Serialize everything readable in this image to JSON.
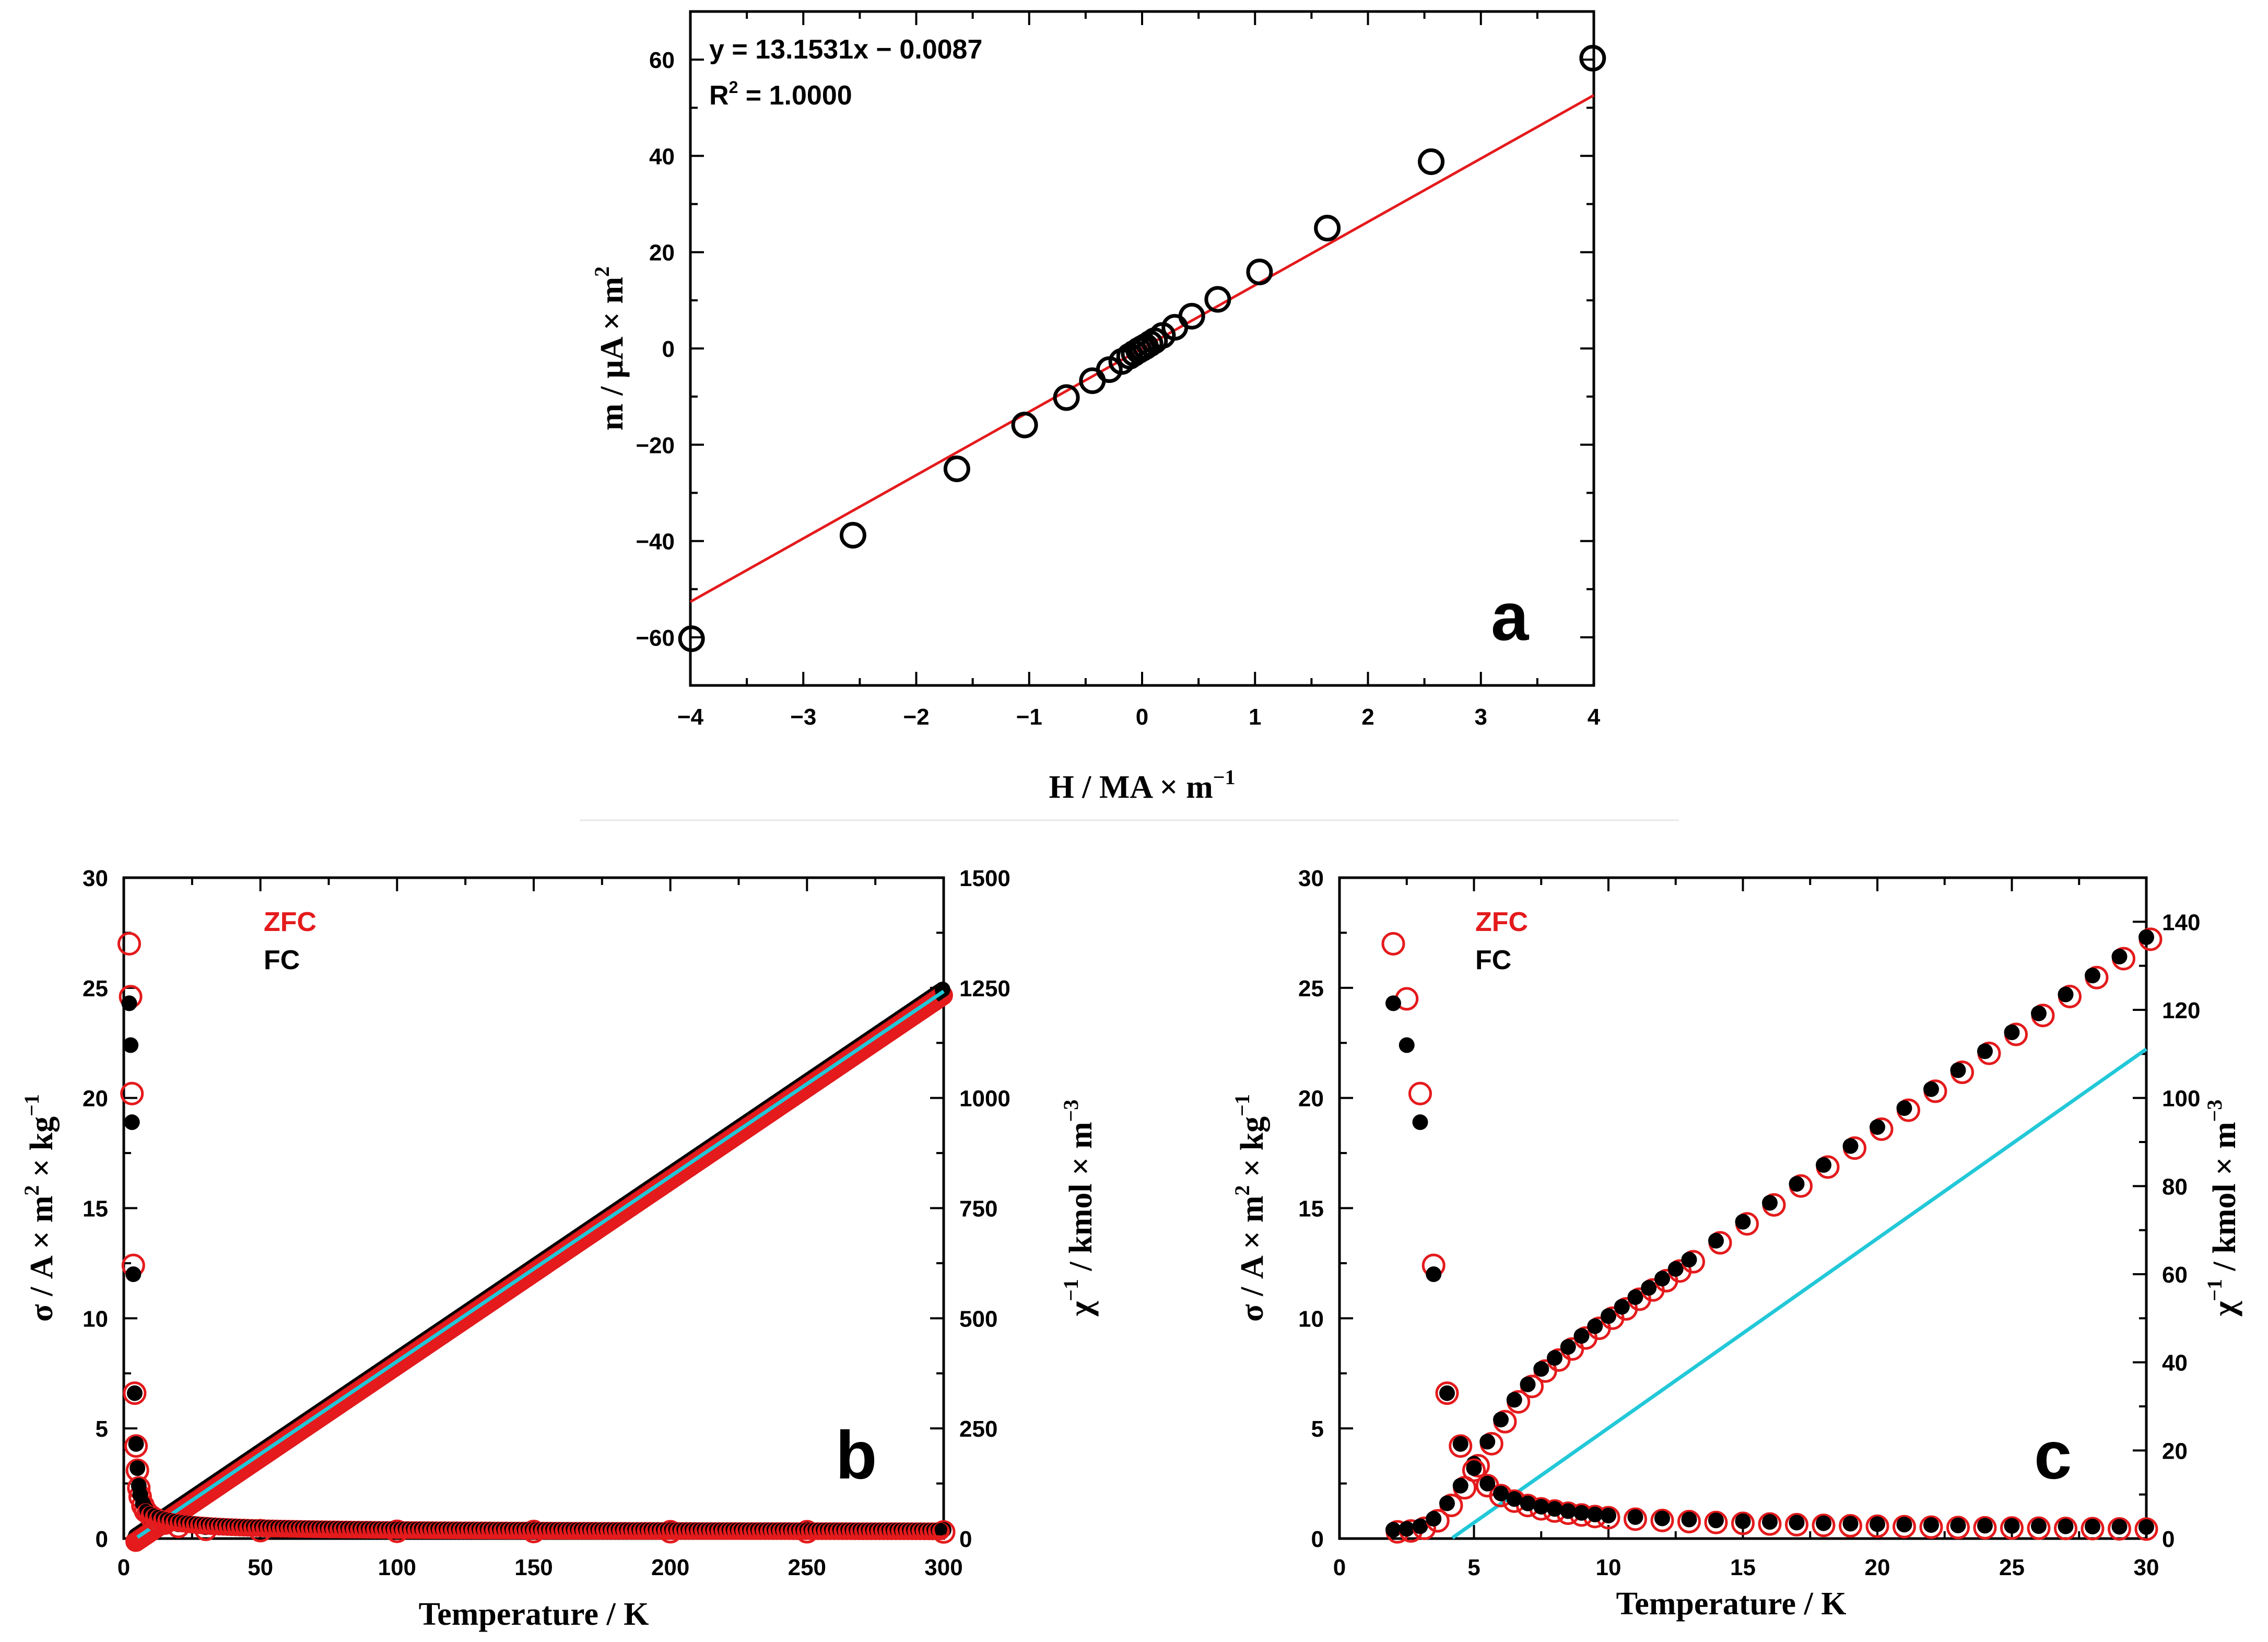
{
  "chart_data": [
    {
      "id": "a",
      "type": "scatter",
      "panel_label": "a",
      "xlabel": "H / MA × m",
      "xlabel_sup": "−1",
      "ylabel": "m / μA × m",
      "ylabel_sup": "2",
      "xlim": [
        -4,
        4
      ],
      "ylim": [
        -70,
        70
      ],
      "xticks": [
        -4,
        -3,
        -2,
        -1,
        0,
        1,
        2,
        3,
        4
      ],
      "xtick_labels": [
        "−4",
        "−3",
        "−2",
        "−1",
        "0",
        "1",
        "2",
        "3",
        "4"
      ],
      "yticks": [
        -60,
        -40,
        -20,
        0,
        20,
        40,
        60
      ],
      "ytick_labels": [
        "−60",
        "−40",
        "−20",
        "0",
        "20",
        "40",
        "60"
      ],
      "equation": "y = 13.1531x − 0.0087",
      "r2_prefix": "R",
      "r2_sup": "2",
      "r2_value": " = 1.0000",
      "fit": {
        "slope": 13.1531,
        "intercept": -0.0087,
        "color": "#e41a1c"
      },
      "marker_color": "#000000",
      "points": {
        "x": [
          -3.99,
          -2.56,
          -1.64,
          -1.04,
          -0.67,
          -0.44,
          -0.29,
          -0.18,
          -0.11,
          -0.07,
          -0.03,
          0,
          0.03,
          0.07,
          0.11,
          0.18,
          0.29,
          0.44,
          0.67,
          1.04,
          1.64,
          2.56,
          3.99
        ],
        "y": [
          -60.3,
          -38.8,
          -25.0,
          -15.9,
          -10.2,
          -6.7,
          -4.4,
          -2.7,
          -1.6,
          -1.0,
          -0.4,
          0,
          0.4,
          1.0,
          1.6,
          2.7,
          4.4,
          6.7,
          10.2,
          15.9,
          25.0,
          38.8,
          60.3
        ]
      }
    },
    {
      "id": "b",
      "type": "scatter",
      "panel_label": "b",
      "xlabel": "Temperature / K",
      "ylabel_left": "σ / A × m",
      "ylabel_left_sup1": "2",
      "ylabel_left_mid": " × kg",
      "ylabel_left_sup2": "−1",
      "ylabel_right": "χ",
      "ylabel_right_sup1": "−1",
      "ylabel_right_mid": " / kmol × m",
      "ylabel_right_sup2": "−3",
      "xlim": [
        0,
        300
      ],
      "ylim_left": [
        0,
        30
      ],
      "ylim_right": [
        0,
        1500
      ],
      "xticks": [
        0,
        50,
        100,
        150,
        200,
        250,
        300
      ],
      "yticks_left": [
        0,
        5,
        10,
        15,
        20,
        25,
        30
      ],
      "yticks_right": [
        0,
        250,
        500,
        750,
        1000,
        1250,
        1500
      ],
      "legend": [
        {
          "label": "ZFC",
          "color": "#e41a1c"
        },
        {
          "label": "FC",
          "color": "#000000"
        }
      ],
      "series": [
        {
          "name": "ZFC σ",
          "axis": "left",
          "marker": "open",
          "color": "#e41a1c",
          "x": [
            2,
            2.5,
            3,
            3.5,
            4,
            4.5,
            5,
            5.5,
            6,
            7,
            8,
            10,
            12,
            15,
            20,
            30,
            50,
            100,
            150,
            200,
            250,
            300
          ],
          "y": [
            27.0,
            24.6,
            20.2,
            12.4,
            6.6,
            4.2,
            3.1,
            2.3,
            1.9,
            1.5,
            1.25,
            1.0,
            0.85,
            0.7,
            0.55,
            0.42,
            0.36,
            0.33,
            0.32,
            0.31,
            0.31,
            0.3
          ]
        },
        {
          "name": "FC σ",
          "axis": "left",
          "marker": "filled",
          "color": "#000000",
          "x": [
            2,
            2.5,
            3,
            3.5,
            4,
            4.5,
            5,
            5.5,
            6,
            7,
            8,
            10,
            12,
            15,
            20,
            30,
            50,
            100,
            150,
            200,
            250,
            300
          ],
          "y": [
            24.3,
            22.4,
            18.9,
            12.0,
            6.6,
            4.2,
            3.1,
            2.3,
            1.9,
            1.5,
            1.25,
            1.0,
            0.85,
            0.7,
            0.55,
            0.42,
            0.36,
            0.33,
            0.32,
            0.31,
            0.31,
            0.3
          ]
        },
        {
          "name": "χ⁻¹",
          "axis": "right",
          "marker": "dense",
          "color": "#000000",
          "x_range": [
            2,
            300
          ],
          "slope": 4.2,
          "intercept": -18
        }
      ],
      "fit": {
        "axis": "right",
        "color": "#22c8d8",
        "slope": 4.2,
        "intercept": -18,
        "x_range": [
          5,
          300
        ]
      }
    },
    {
      "id": "c",
      "type": "scatter",
      "panel_label": "c",
      "xlabel": "Temperature / K",
      "ylabel_left": "σ / A × m",
      "ylabel_left_sup1": "2",
      "ylabel_left_mid": " × kg",
      "ylabel_left_sup2": "−1",
      "ylabel_right": "χ",
      "ylabel_right_sup1": "−1",
      "ylabel_right_mid": " / kmol × m",
      "ylabel_right_sup2": "−3",
      "xlim": [
        0,
        30
      ],
      "ylim_left": [
        0,
        30
      ],
      "ylim_right": [
        0,
        150
      ],
      "xticks": [
        0,
        5,
        10,
        15,
        20,
        25,
        30
      ],
      "yticks_left": [
        0,
        5,
        10,
        15,
        20,
        25,
        30
      ],
      "yticks_right": [
        0,
        20,
        40,
        60,
        80,
        100,
        120,
        140
      ],
      "legend": [
        {
          "label": "ZFC",
          "color": "#e41a1c"
        },
        {
          "label": "FC",
          "color": "#000000"
        }
      ],
      "series": [
        {
          "name": "ZFC σ",
          "axis": "left",
          "marker": "open",
          "color": "#e41a1c",
          "x": [
            2,
            2.5,
            3,
            3.5,
            4,
            4.5,
            5,
            5.5,
            6,
            6.5,
            7,
            7.5,
            8,
            8.5,
            9,
            9.5,
            10,
            11,
            12,
            13,
            14,
            15,
            16,
            17,
            18,
            19,
            20,
            21,
            22,
            23,
            24,
            25,
            26,
            27,
            28,
            29,
            30
          ],
          "y": [
            27.0,
            24.5,
            20.2,
            12.4,
            6.6,
            4.2,
            3.1,
            2.4,
            1.95,
            1.7,
            1.5,
            1.35,
            1.25,
            1.15,
            1.07,
            1.0,
            0.95,
            0.88,
            0.82,
            0.77,
            0.73,
            0.69,
            0.66,
            0.63,
            0.6,
            0.58,
            0.56,
            0.54,
            0.52,
            0.5,
            0.49,
            0.48,
            0.47,
            0.46,
            0.45,
            0.44,
            0.43
          ]
        },
        {
          "name": "FC σ",
          "axis": "left",
          "marker": "filled",
          "color": "#000000",
          "x": [
            2,
            2.5,
            3,
            3.5,
            4,
            4.5,
            5,
            5.5,
            6,
            6.5,
            7,
            7.5,
            8,
            8.5,
            9,
            9.5,
            10,
            11,
            12,
            13,
            14,
            15,
            16,
            17,
            18,
            19,
            20,
            21,
            22,
            23,
            24,
            25,
            26,
            27,
            28,
            29,
            30
          ],
          "y": [
            24.3,
            22.4,
            18.9,
            12.0,
            6.6,
            4.2,
            3.1,
            2.4,
            1.95,
            1.7,
            1.5,
            1.35,
            1.25,
            1.15,
            1.07,
            1.0,
            0.95,
            0.88,
            0.82,
            0.77,
            0.73,
            0.69,
            0.66,
            0.63,
            0.6,
            0.58,
            0.56,
            0.54,
            0.52,
            0.5,
            0.49,
            0.48,
            0.47,
            0.46,
            0.45,
            0.44,
            0.43
          ]
        },
        {
          "name": "χ⁻¹",
          "axis": "right",
          "marker": "both",
          "color": "#000000",
          "x": [
            2,
            2.5,
            3,
            3.5,
            4,
            4.5,
            5,
            5.5,
            6,
            6.5,
            7,
            7.5,
            8,
            8.5,
            9,
            9.5,
            10,
            10.5,
            11,
            11.5,
            12,
            12.5,
            13,
            14,
            15,
            16,
            17,
            18,
            19,
            20,
            21,
            22,
            23,
            24,
            25,
            26,
            27,
            28,
            29,
            30
          ],
          "y": [
            2,
            2.2,
            2.8,
            4.5,
            8,
            12,
            17,
            22,
            27,
            31.5,
            35,
            38.5,
            41,
            43.5,
            46,
            48.2,
            50.5,
            52.6,
            54.8,
            56.9,
            59,
            61.2,
            63.3,
            67.6,
            71.9,
            76.2,
            80.5,
            84.8,
            89.1,
            93.4,
            97.7,
            102,
            106.3,
            110.6,
            114.9,
            119.2,
            123.5,
            127.8,
            132.1,
            136.5
          ]
        }
      ],
      "fit": {
        "axis": "right",
        "color": "#22c8d8",
        "slope": 4.3,
        "intercept": -17.9,
        "x_range": [
          4.2,
          30
        ]
      }
    }
  ]
}
